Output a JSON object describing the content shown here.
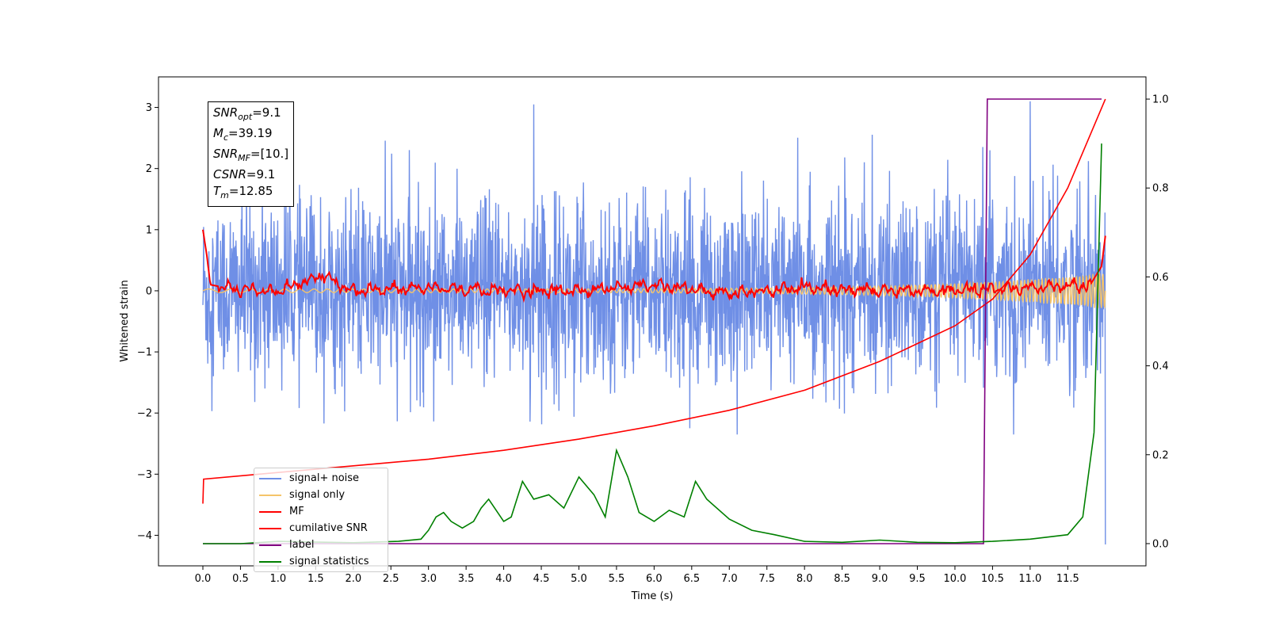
{
  "colors": {
    "signal_noise": "#6f8fe6",
    "signal_only": "#f5c46a",
    "mf": "#ff0000",
    "csnr": "#ff0000",
    "label": "#800080",
    "signal_stats": "#008000"
  },
  "info_box": {
    "lines": [
      {
        "sym": "SNR",
        "sub": "opt",
        "rest": "=9.1"
      },
      {
        "sym": "M",
        "sub": "c",
        "rest": "=39.19"
      },
      {
        "sym": "SNR",
        "sub": "MF",
        "rest": "=[10.]"
      },
      {
        "sym": "CSNR",
        "sub": "",
        "rest": "=9.1"
      },
      {
        "sym": "T",
        "sub": "m",
        "rest": "=12.85"
      }
    ]
  },
  "chart_data": {
    "type": "line",
    "xlabel": "Time (s)",
    "ylabel": "Whitened strain",
    "x_ticks": [
      "0.0",
      "0.5",
      "1.0",
      "1.5",
      "2.0",
      "2.5",
      "3.0",
      "3.5",
      "4.0",
      "4.5",
      "5.0",
      "5.5",
      "6.0",
      "6.5",
      "7.0",
      "7.5",
      "8.0",
      "8.5",
      "9.0",
      "9.5",
      "10.0",
      "10.5",
      "11.0",
      "11.5"
    ],
    "y_left_ticks": [
      "3",
      "2",
      "1",
      "0",
      "−1",
      "−2",
      "−3",
      "−4"
    ],
    "y_right_ticks": [
      "1.0",
      "0.8",
      "0.6",
      "0.4",
      "0.2",
      "0.0"
    ],
    "xlim": [
      -0.59,
      12.54
    ],
    "ylim_left": [
      -4.5,
      3.5
    ],
    "ylim_right": [
      -0.05,
      1.05
    ],
    "grid": false,
    "legend_position": "lower-left",
    "series": [
      {
        "name": "signal+ noise",
        "axis": "left",
        "description_values": "noise band roughly -2.3 to 3.0, spikes to 3.05 at 4.4 s and 3.1 at 11.0 s, final drop to -4.15 at 12.0 s"
      },
      {
        "name": "signal only",
        "axis": "left",
        "description_values": "near 0, chirp growing to about ±0.3 near 12.0 s"
      },
      {
        "name": "MF",
        "axis": "left",
        "points": [
          [
            0.0,
            1.0
          ],
          [
            0.05,
            0.6
          ],
          [
            0.1,
            0.1
          ],
          [
            0.3,
            0.05
          ],
          [
            0.5,
            0.02
          ],
          [
            1.0,
            0.0
          ],
          [
            1.6,
            0.25
          ],
          [
            2.0,
            0.0
          ],
          [
            3.0,
            0.05
          ],
          [
            4.0,
            0.0
          ],
          [
            5.0,
            0.0
          ],
          [
            6.0,
            0.1
          ],
          [
            7.0,
            -0.05
          ],
          [
            8.0,
            0.05
          ],
          [
            9.0,
            0.0
          ],
          [
            10.0,
            0.0
          ],
          [
            11.0,
            0.05
          ],
          [
            11.8,
            0.1
          ],
          [
            11.95,
            0.4
          ],
          [
            12.0,
            0.9
          ]
        ]
      },
      {
        "name": "cumilative SNR",
        "axis": "right",
        "points": [
          [
            0.0,
            0.09
          ],
          [
            0.01,
            0.145
          ],
          [
            1.0,
            0.16
          ],
          [
            2.0,
            0.175
          ],
          [
            3.0,
            0.19
          ],
          [
            4.0,
            0.21
          ],
          [
            5.0,
            0.235
          ],
          [
            6.0,
            0.265
          ],
          [
            7.0,
            0.3
          ],
          [
            8.0,
            0.345
          ],
          [
            9.0,
            0.41
          ],
          [
            10.0,
            0.49
          ],
          [
            10.5,
            0.55
          ],
          [
            11.0,
            0.65
          ],
          [
            11.5,
            0.8
          ],
          [
            12.0,
            1.0
          ]
        ]
      },
      {
        "name": "label",
        "axis": "right",
        "points": [
          [
            0.0,
            0.0
          ],
          [
            10.38,
            0.0
          ],
          [
            10.43,
            1.0
          ],
          [
            11.95,
            1.0
          ]
        ]
      },
      {
        "name": "signal statistics",
        "axis": "right",
        "points": [
          [
            0.0,
            0.0
          ],
          [
            0.5,
            0.0
          ],
          [
            1.0,
            0.005
          ],
          [
            2.0,
            0.002
          ],
          [
            2.6,
            0.005
          ],
          [
            2.9,
            0.01
          ],
          [
            3.0,
            0.03
          ],
          [
            3.1,
            0.06
          ],
          [
            3.2,
            0.07
          ],
          [
            3.3,
            0.05
          ],
          [
            3.45,
            0.035
          ],
          [
            3.6,
            0.05
          ],
          [
            3.7,
            0.08
          ],
          [
            3.8,
            0.1
          ],
          [
            4.0,
            0.05
          ],
          [
            4.1,
            0.06
          ],
          [
            4.25,
            0.14
          ],
          [
            4.4,
            0.1
          ],
          [
            4.6,
            0.11
          ],
          [
            4.8,
            0.08
          ],
          [
            5.0,
            0.15
          ],
          [
            5.2,
            0.11
          ],
          [
            5.35,
            0.06
          ],
          [
            5.5,
            0.21
          ],
          [
            5.65,
            0.15
          ],
          [
            5.8,
            0.07
          ],
          [
            6.0,
            0.05
          ],
          [
            6.2,
            0.075
          ],
          [
            6.4,
            0.06
          ],
          [
            6.55,
            0.14
          ],
          [
            6.7,
            0.1
          ],
          [
            7.0,
            0.055
          ],
          [
            7.3,
            0.03
          ],
          [
            7.6,
            0.02
          ],
          [
            8.0,
            0.005
          ],
          [
            8.5,
            0.003
          ],
          [
            9.0,
            0.008
          ],
          [
            9.5,
            0.003
          ],
          [
            10.0,
            0.002
          ],
          [
            10.5,
            0.005
          ],
          [
            11.0,
            0.01
          ],
          [
            11.5,
            0.02
          ],
          [
            11.7,
            0.06
          ],
          [
            11.85,
            0.25
          ],
          [
            11.95,
            0.9
          ]
        ]
      }
    ]
  },
  "legend": [
    {
      "label": "signal+ noise",
      "color": "#6f8fe6"
    },
    {
      "label": "signal only",
      "color": "#f5c46a"
    },
    {
      "label": "MF",
      "color": "#ff0000"
    },
    {
      "label": "cumilative SNR",
      "color": "#ff0000"
    },
    {
      "label": "label",
      "color": "#800080"
    },
    {
      "label": "signal statistics",
      "color": "#008000"
    }
  ]
}
